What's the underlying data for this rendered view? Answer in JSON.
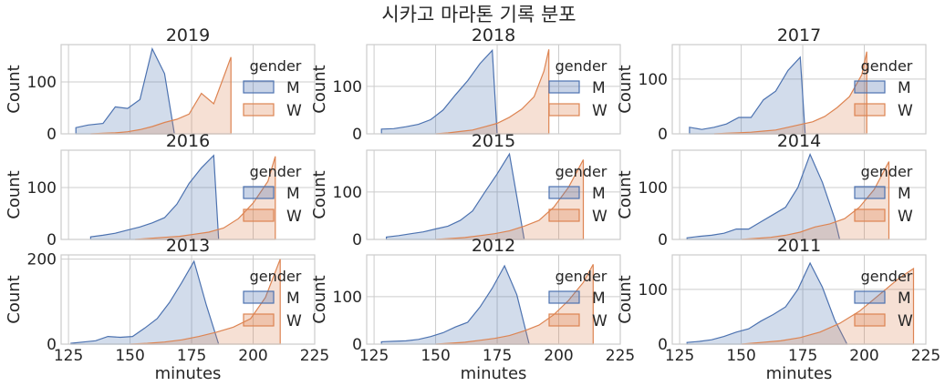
{
  "figure": {
    "title": "시카고 마라톤 기록 분포"
  },
  "colors": {
    "M": "#4c72b0",
    "W": "#dd8452",
    "grid": "#cccccc",
    "frame": "#cccccc"
  },
  "chart_data": [
    {
      "type": "area",
      "title": "2019",
      "xlabel": "",
      "ylabel": "Count",
      "xlim": [
        122,
        225
      ],
      "ylim": [
        0,
        172
      ],
      "yticks": [
        0,
        100
      ],
      "xticks": [
        125,
        150,
        175,
        200,
        225
      ],
      "show_xticklabels": false,
      "legend": {
        "title": "gender",
        "entries": [
          "M",
          "W"
        ],
        "placement": "top-right"
      },
      "series": [
        {
          "name": "M",
          "x": [
            128,
            133,
            139,
            144,
            149,
            154,
            159,
            164,
            168
          ],
          "y": [
            12,
            17,
            20,
            52,
            49,
            66,
            164,
            116,
            0
          ]
        },
        {
          "name": "W",
          "x": [
            134,
            139,
            144,
            149,
            154,
            159,
            164,
            169,
            174,
            179,
            184,
            189,
            191
          ],
          "y": [
            0,
            1,
            2,
            4,
            8,
            14,
            22,
            28,
            38,
            78,
            58,
            122,
            148
          ]
        }
      ]
    },
    {
      "type": "area",
      "title": "2018",
      "xlabel": "",
      "ylabel": "Count",
      "xlim": [
        122,
        225
      ],
      "ylim": [
        0,
        188
      ],
      "yticks": [
        0,
        100
      ],
      "xticks": [
        125,
        150,
        175,
        200,
        225
      ],
      "show_xticklabels": false,
      "legend": {
        "title": "gender",
        "entries": [
          "M",
          "W"
        ],
        "placement": "top-right"
      },
      "series": [
        {
          "name": "M",
          "x": [
            128,
            133,
            138,
            143,
            148,
            153,
            158,
            163,
            168,
            173,
            175
          ],
          "y": [
            10,
            11,
            15,
            20,
            30,
            50,
            82,
            112,
            148,
            176,
            0
          ]
        },
        {
          "name": "W",
          "x": [
            150,
            155,
            160,
            165,
            170,
            175,
            180,
            185,
            190,
            194,
            196
          ],
          "y": [
            0,
            2,
            5,
            8,
            15,
            22,
            35,
            52,
            78,
            132,
            178
          ]
        }
      ]
    },
    {
      "type": "area",
      "title": "2017",
      "xlabel": "",
      "ylabel": "Count",
      "xlim": [
        122,
        225
      ],
      "ylim": [
        0,
        163
      ],
      "yticks": [
        0,
        100
      ],
      "xticks": [
        125,
        150,
        175,
        200,
        225
      ],
      "show_xticklabels": false,
      "legend": {
        "title": "gender",
        "entries": [
          "M",
          "W"
        ],
        "placement": "top-right"
      },
      "series": [
        {
          "name": "M",
          "x": [
            129,
            134,
            139,
            144,
            149,
            154,
            159,
            164,
            169,
            174,
            176
          ],
          "y": [
            12,
            8,
            12,
            18,
            30,
            30,
            62,
            78,
            116,
            140,
            0
          ]
        },
        {
          "name": "W",
          "x": [
            139,
            144,
            149,
            154,
            159,
            164,
            169,
            174,
            179,
            184,
            189,
            194,
            199,
            201
          ],
          "y": [
            0,
            1,
            2,
            3,
            5,
            7,
            12,
            17,
            22,
            32,
            48,
            68,
            108,
            150
          ]
        }
      ]
    },
    {
      "type": "area",
      "title": "2016",
      "xlabel": "",
      "ylabel": "Count",
      "xlim": [
        122,
        225
      ],
      "ylim": [
        0,
        172
      ],
      "yticks": [
        0,
        100
      ],
      "xticks": [
        125,
        150,
        175,
        200,
        225
      ],
      "show_xticklabels": false,
      "legend": {
        "title": "gender",
        "entries": [
          "M",
          "W"
        ],
        "placement": "top-right"
      },
      "series": [
        {
          "name": "M",
          "x": [
            134,
            139,
            144,
            149,
            154,
            159,
            164,
            169,
            174,
            179,
            184,
            186
          ],
          "y": [
            5,
            8,
            12,
            18,
            24,
            32,
            42,
            68,
            108,
            138,
            162,
            0
          ]
        },
        {
          "name": "W",
          "x": [
            152,
            158,
            164,
            170,
            176,
            182,
            188,
            194,
            200,
            206,
            209
          ],
          "y": [
            0,
            2,
            4,
            6,
            10,
            14,
            22,
            40,
            70,
            112,
            160
          ]
        }
      ]
    },
    {
      "type": "area",
      "title": "2015",
      "xlabel": "",
      "ylabel": "Count",
      "xlim": [
        122,
        225
      ],
      "ylim": [
        0,
        188
      ],
      "yticks": [
        0,
        100
      ],
      "xticks": [
        125,
        150,
        175,
        200,
        225
      ],
      "show_xticklabels": false,
      "legend": {
        "title": "gender",
        "entries": [
          "M",
          "W"
        ],
        "placement": "top-right"
      },
      "series": [
        {
          "name": "M",
          "x": [
            130,
            135,
            140,
            145,
            150,
            155,
            160,
            165,
            170,
            175,
            180,
            186
          ],
          "y": [
            5,
            8,
            12,
            16,
            22,
            28,
            40,
            60,
            100,
            138,
            180,
            0
          ]
        },
        {
          "name": "W",
          "x": [
            150,
            156,
            162,
            168,
            174,
            180,
            186,
            192,
            198,
            204,
            210
          ],
          "y": [
            0,
            2,
            4,
            8,
            12,
            18,
            28,
            40,
            68,
            110,
            168
          ]
        }
      ]
    },
    {
      "type": "area",
      "title": "2014",
      "xlabel": "",
      "ylabel": "Count",
      "xlim": [
        122,
        225
      ],
      "ylim": [
        0,
        172
      ],
      "yticks": [
        0,
        100
      ],
      "xticks": [
        125,
        150,
        175,
        200,
        225
      ],
      "show_xticklabels": false,
      "legend": {
        "title": "gender",
        "entries": [
          "M",
          "W"
        ],
        "placement": "top-right"
      },
      "series": [
        {
          "name": "M",
          "x": [
            128,
            133,
            138,
            143,
            148,
            153,
            158,
            163,
            168,
            173,
            178,
            183,
            188,
            190
          ],
          "y": [
            3,
            6,
            8,
            12,
            20,
            20,
            34,
            48,
            62,
            100,
            164,
            110,
            40,
            0
          ]
        },
        {
          "name": "W",
          "x": [
            150,
            156,
            162,
            168,
            174,
            180,
            186,
            192,
            198,
            204,
            210
          ],
          "y": [
            0,
            2,
            4,
            8,
            14,
            24,
            30,
            40,
            62,
            96,
            150
          ]
        }
      ]
    },
    {
      "type": "area",
      "title": "2013",
      "xlabel": "minutes",
      "ylabel": "Count",
      "xlim": [
        122,
        225
      ],
      "ylim": [
        0,
        210
      ],
      "yticks": [
        0,
        200
      ],
      "xticks": [
        125,
        150,
        175,
        200,
        225
      ],
      "show_xticklabels": true,
      "legend": {
        "title": "gender",
        "entries": [
          "M",
          "W"
        ],
        "placement": "top-right"
      },
      "series": [
        {
          "name": "M",
          "x": [
            126,
            131,
            136,
            141,
            146,
            151,
            156,
            161,
            166,
            171,
            176,
            181,
            186
          ],
          "y": [
            2,
            5,
            8,
            18,
            16,
            18,
            38,
            60,
            98,
            145,
            195,
            92,
            0
          ]
        },
        {
          "name": "W",
          "x": [
            150,
            157,
            164,
            171,
            178,
            185,
            192,
            199,
            205,
            211
          ],
          "y": [
            0,
            2,
            5,
            10,
            18,
            28,
            40,
            60,
            110,
            200
          ]
        }
      ]
    },
    {
      "type": "area",
      "title": "2012",
      "xlabel": "minutes",
      "ylabel": "Count",
      "xlim": [
        122,
        225
      ],
      "ylim": [
        0,
        188
      ],
      "yticks": [
        0,
        100
      ],
      "xticks": [
        125,
        150,
        175,
        200,
        225
      ],
      "show_xticklabels": true,
      "legend": {
        "title": "gender",
        "entries": [
          "M",
          "W"
        ],
        "placement": "top-right"
      },
      "series": [
        {
          "name": "M",
          "x": [
            128,
            133,
            138,
            143,
            148,
            153,
            158,
            163,
            168,
            173,
            178,
            183,
            188
          ],
          "y": [
            5,
            6,
            7,
            10,
            16,
            24,
            36,
            46,
            78,
            118,
            165,
            104,
            0
          ]
        },
        {
          "name": "W",
          "x": [
            150,
            156,
            162,
            168,
            174,
            180,
            186,
            192,
            198,
            204,
            210,
            214
          ],
          "y": [
            0,
            2,
            4,
            8,
            12,
            18,
            28,
            40,
            62,
            92,
            130,
            168
          ]
        }
      ]
    },
    {
      "type": "area",
      "title": "2011",
      "xlabel": "minutes",
      "ylabel": "Count",
      "xlim": [
        122,
        225
      ],
      "ylim": [
        0,
        163
      ],
      "yticks": [
        0,
        100
      ],
      "xticks": [
        125,
        150,
        175,
        200,
        225
      ],
      "show_xticklabels": true,
      "legend": {
        "title": "gender",
        "entries": [
          "M",
          "W"
        ],
        "placement": "top-right"
      },
      "series": [
        {
          "name": "M",
          "x": [
            128,
            133,
            138,
            143,
            148,
            153,
            158,
            163,
            168,
            173,
            178,
            183,
            188,
            193
          ],
          "y": [
            3,
            5,
            8,
            14,
            22,
            28,
            42,
            54,
            68,
            100,
            148,
            104,
            44,
            0
          ]
        },
        {
          "name": "W",
          "x": [
            150,
            158,
            166,
            174,
            182,
            190,
            198,
            206,
            214,
            220
          ],
          "y": [
            0,
            3,
            6,
            12,
            22,
            38,
            60,
            90,
            120,
            138
          ]
        }
      ]
    }
  ]
}
